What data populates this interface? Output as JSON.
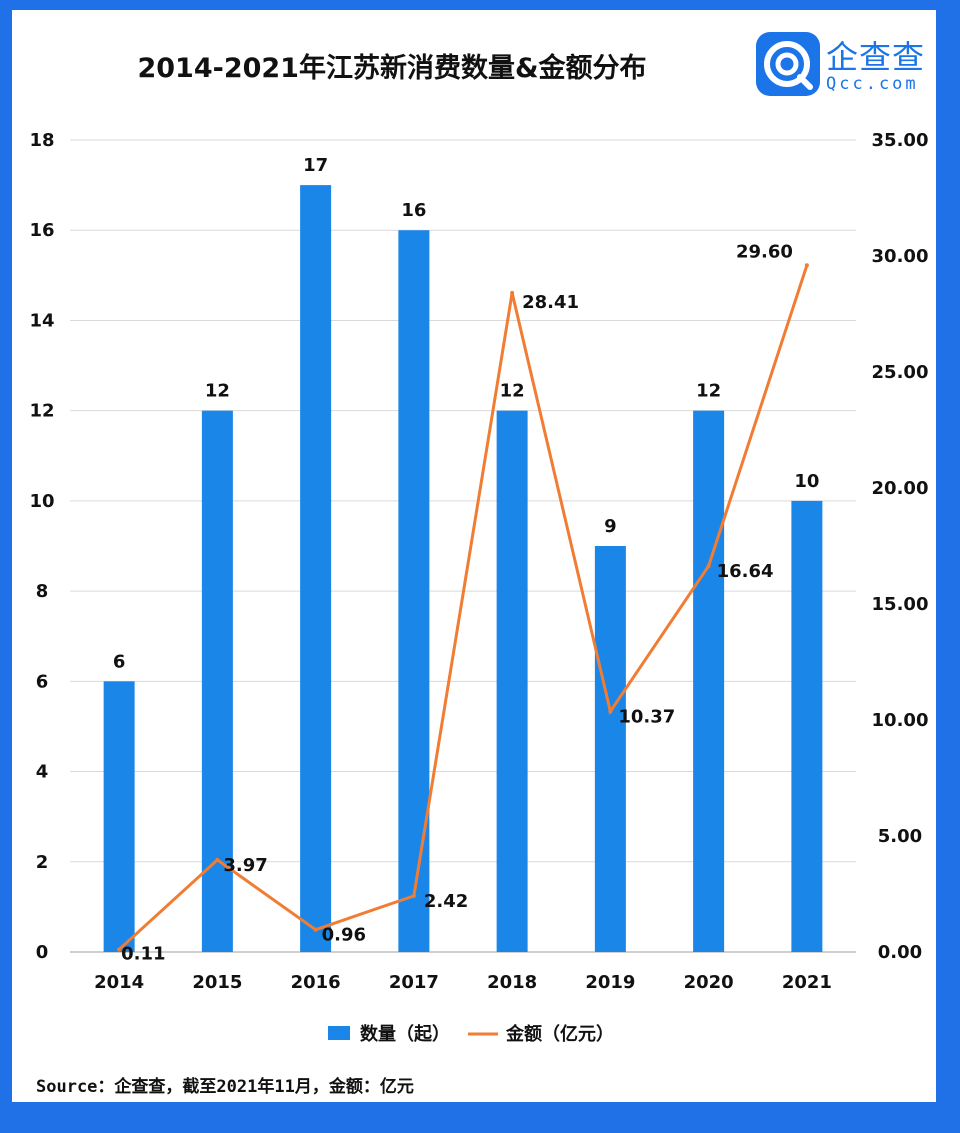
{
  "title": "2014-2021年江苏新消费数量&金额分布",
  "logo": {
    "cn": "企查查",
    "en": "Qcc.com"
  },
  "source": "Source：企查查，截至2021年11月，金额：亿元",
  "colors": {
    "bar": "#1a86e8",
    "line": "#f07d33",
    "border": "#2070e8",
    "grid": "#d9d9d9"
  },
  "chart_data": {
    "type": "bar",
    "categories": [
      "2014",
      "2015",
      "2016",
      "2017",
      "2018",
      "2019",
      "2020",
      "2021"
    ],
    "series": [
      {
        "name": "数量（起）",
        "type": "bar",
        "axis": "left",
        "values": [
          6,
          12,
          17,
          16,
          12,
          9,
          12,
          10
        ],
        "labels": [
          "6",
          "12",
          "17",
          "16",
          "12",
          "9",
          "12",
          "10"
        ]
      },
      {
        "name": "金额（亿元）",
        "type": "line",
        "axis": "right",
        "values": [
          0.11,
          3.97,
          0.96,
          2.42,
          28.41,
          10.37,
          16.64,
          29.6
        ],
        "labels": [
          "0.11",
          "3.97",
          "0.96",
          "2.42",
          "28.41",
          "10.37",
          "16.64",
          "29.60"
        ]
      }
    ],
    "y_left": {
      "range": [
        0,
        18
      ],
      "ticks": [
        "0",
        "2",
        "4",
        "6",
        "8",
        "10",
        "12",
        "14",
        "16",
        "18"
      ]
    },
    "y_right": {
      "range": [
        0,
        35
      ],
      "ticks": [
        "0.00",
        "5.00",
        "10.00",
        "15.00",
        "20.00",
        "25.00",
        "30.00",
        "35.00"
      ]
    },
    "grid": true,
    "legend": "bottom"
  }
}
